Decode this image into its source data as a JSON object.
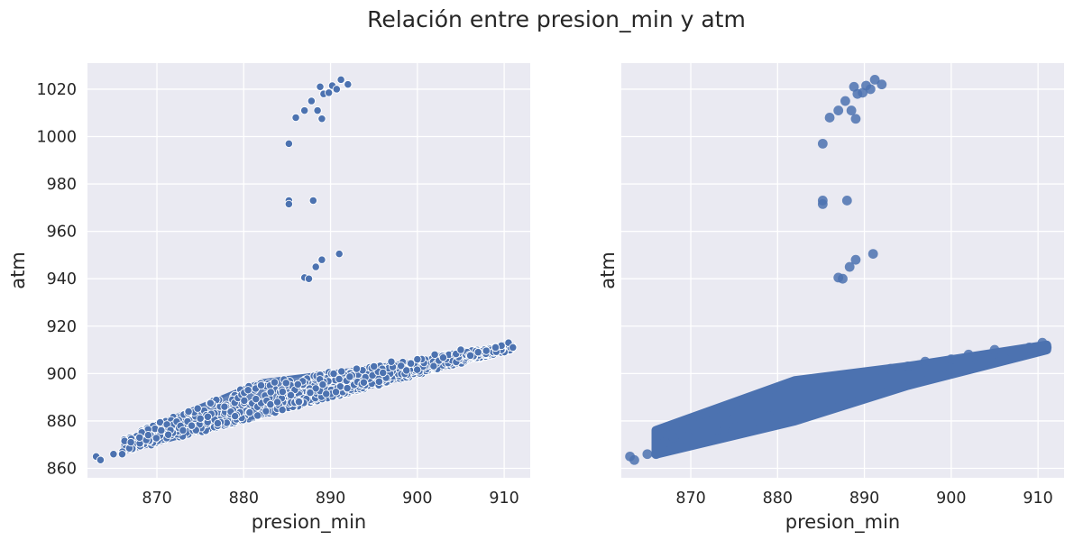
{
  "figure": {
    "title": "Relación entre presion_min y atm"
  },
  "chart_data": [
    {
      "type": "scatter",
      "title": "",
      "xlabel": "presion_min",
      "ylabel": "atm",
      "xlim": [
        862,
        913
      ],
      "ylim": [
        856,
        1031
      ],
      "xticks": [
        870,
        880,
        890,
        900,
        910
      ],
      "yticks": [
        860,
        880,
        900,
        920,
        940,
        960,
        980,
        1000,
        1020
      ],
      "ytick_labels_visible": true,
      "grid": true,
      "color": "#4c72b0",
      "marker_edge": "white",
      "points": [
        [
          863,
          865
        ],
        [
          863.5,
          863.5
        ],
        [
          865,
          866
        ],
        [
          866,
          866
        ],
        [
          867,
          871
        ],
        [
          868,
          873
        ],
        [
          869,
          874
        ],
        [
          870.5,
          876
        ],
        [
          873,
          876
        ],
        [
          874,
          878
        ],
        [
          875,
          881
        ],
        [
          877,
          879
        ],
        [
          879,
          882
        ],
        [
          880.5,
          893
        ],
        [
          882,
          895
        ],
        [
          885.2,
          997
        ],
        [
          885.2,
          973
        ],
        [
          885.2,
          971.5
        ],
        [
          886,
          1008
        ],
        [
          887,
          1011
        ],
        [
          887,
          940.5
        ],
        [
          887.5,
          940
        ],
        [
          887.8,
          1015
        ],
        [
          888,
          973
        ],
        [
          888.3,
          945
        ],
        [
          888.5,
          1011
        ],
        [
          888.8,
          1021
        ],
        [
          889,
          948
        ],
        [
          889,
          1007.5
        ],
        [
          889.2,
          1018
        ],
        [
          889.8,
          1018.5
        ],
        [
          890.2,
          1021.5
        ],
        [
          890.7,
          1020
        ],
        [
          891,
          950.5
        ],
        [
          891.2,
          1024
        ],
        [
          892,
          1022
        ],
        [
          893,
          902
        ],
        [
          895,
          903
        ],
        [
          897,
          905
        ],
        [
          900,
          906
        ],
        [
          902,
          908
        ],
        [
          905,
          910
        ],
        [
          907,
          909
        ],
        [
          909,
          911
        ],
        [
          910.5,
          913
        ],
        [
          911,
          911
        ]
      ],
      "bands": [
        {
          "x": [
            866,
            911
          ],
          "lower": [
            866.5,
            910
          ],
          "upper": [
            872.5,
            911.5
          ]
        },
        {
          "x": [
            868,
            882,
            895,
            910
          ],
          "lower": [
            870,
            882,
            896,
            910
          ],
          "upper": [
            876,
            897,
            903,
            912
          ]
        }
      ]
    },
    {
      "type": "scatter",
      "title": "",
      "xlabel": "presion_min",
      "ylabel": "atm",
      "xlim": [
        862,
        913
      ],
      "ylim": [
        856,
        1031
      ],
      "xticks": [
        870,
        880,
        890,
        900,
        910
      ],
      "yticks": [
        860,
        880,
        900,
        920,
        940,
        960,
        980,
        1000,
        1020
      ],
      "ytick_labels_visible": false,
      "grid": true,
      "color": "#4c72b0",
      "marker_edge": "none",
      "points": [
        [
          863,
          865
        ],
        [
          863.5,
          863.5
        ],
        [
          865,
          866
        ],
        [
          866,
          866
        ],
        [
          867,
          871
        ],
        [
          868,
          873
        ],
        [
          869,
          874
        ],
        [
          870.5,
          876
        ],
        [
          873,
          876
        ],
        [
          874,
          878
        ],
        [
          875,
          881
        ],
        [
          877,
          879
        ],
        [
          879,
          882
        ],
        [
          880.5,
          893
        ],
        [
          882,
          895
        ],
        [
          885.2,
          997
        ],
        [
          885.2,
          973
        ],
        [
          885.2,
          971.5
        ],
        [
          886,
          1008
        ],
        [
          887,
          1011
        ],
        [
          887,
          940.5
        ],
        [
          887.5,
          940
        ],
        [
          887.8,
          1015
        ],
        [
          888,
          973
        ],
        [
          888.3,
          945
        ],
        [
          888.5,
          1011
        ],
        [
          888.8,
          1021
        ],
        [
          889,
          948
        ],
        [
          889,
          1007.5
        ],
        [
          889.2,
          1018
        ],
        [
          889.8,
          1018.5
        ],
        [
          890.2,
          1021.5
        ],
        [
          890.7,
          1020
        ],
        [
          891,
          950.5
        ],
        [
          891.2,
          1024
        ],
        [
          892,
          1022
        ],
        [
          893,
          902
        ],
        [
          895,
          903
        ],
        [
          897,
          905
        ],
        [
          900,
          906
        ],
        [
          902,
          908
        ],
        [
          905,
          910
        ],
        [
          907,
          909
        ],
        [
          909,
          911
        ],
        [
          910.5,
          913
        ],
        [
          911,
          911
        ]
      ],
      "bands": [
        {
          "x": [
            866,
            882,
            895,
            911
          ],
          "lower": [
            866,
            880,
            895,
            910
          ],
          "upper": [
            876,
            897,
            903,
            912
          ]
        }
      ]
    }
  ]
}
